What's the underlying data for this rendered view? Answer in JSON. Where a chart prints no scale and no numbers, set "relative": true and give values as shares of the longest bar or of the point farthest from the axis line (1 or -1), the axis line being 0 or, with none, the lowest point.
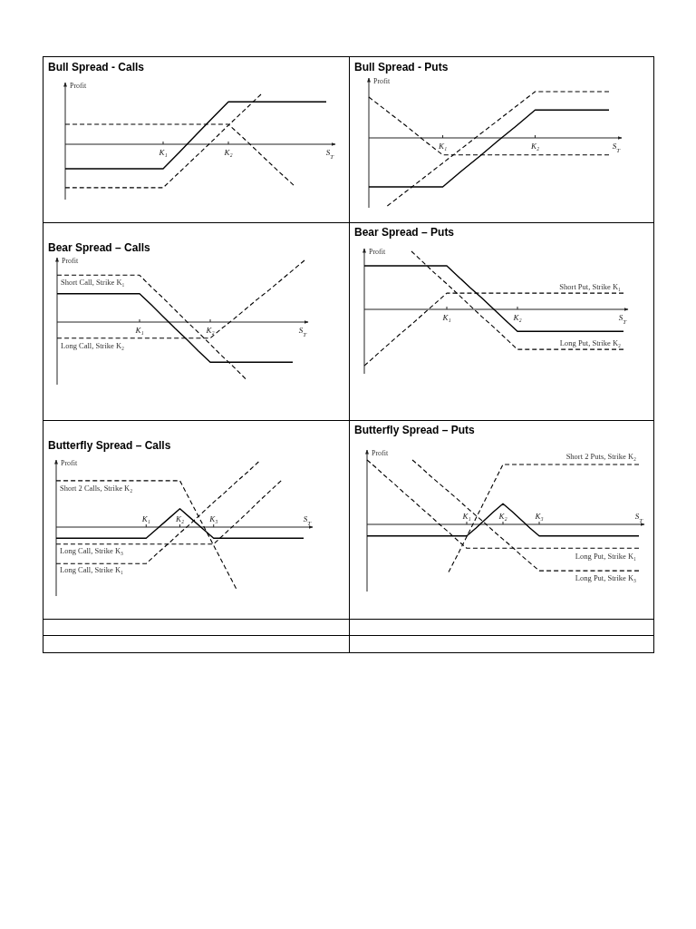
{
  "chart_data": [
    {
      "type": "line",
      "title": "Bull Spread - Calls",
      "xlabel": "S$_{T}$",
      "ylabel": "Profit",
      "relative": true,
      "categories": [
        null,
        null,
        null,
        null,
        null,
        null,
        "K₁",
        null,
        null,
        null,
        "K₂",
        null,
        null,
        null,
        null,
        null,
        null
      ],
      "series": [
        {
          "color": "#000000",
          "line_style": "solid",
          "values": [
            -0.49,
            -0.49,
            -0.49,
            -0.49,
            -0.49,
            -0.49,
            -0.49,
            -0.16,
            0.18,
            0.52,
            0.85,
            0.85,
            0.85,
            0.85,
            0.85,
            0.85,
            0.85
          ]
        },
        {
          "color": "#000000",
          "line_style": "dashed",
          "values": [
            0.4,
            0.4,
            0.4,
            0.4,
            0.4,
            0.4,
            0.4,
            0.4,
            0.4,
            0.4,
            0.4,
            0.1,
            -0.21,
            -0.52,
            -0.82,
            null,
            null
          ]
        },
        {
          "color": "#000000",
          "line_style": "dashed",
          "values": [
            -0.87,
            -0.87,
            -0.87,
            -0.87,
            -0.87,
            -0.87,
            -0.87,
            -0.56,
            -0.25,
            0.06,
            0.38,
            0.69,
            1.0,
            null,
            null,
            null,
            null
          ]
        }
      ]
    },
    {
      "type": "line",
      "title": "Bull Spread - Puts",
      "xlabel": "S$_{T}$",
      "ylabel": "Profit",
      "relative": true,
      "categories": [
        null,
        null,
        null,
        null,
        "K₁",
        null,
        null,
        null,
        null,
        "K₂",
        null,
        null,
        null,
        null
      ],
      "series": [
        {
          "color": "#000000",
          "line_style": "solid",
          "values": [
            -0.72,
            -0.72,
            -0.72,
            -0.72,
            -0.72,
            -0.49,
            -0.27,
            -0.04,
            0.18,
            0.41,
            0.41,
            0.41,
            0.41,
            0.41
          ]
        },
        {
          "color": "#000000",
          "line_style": "dashed",
          "values": [
            0.6,
            0.39,
            0.18,
            -0.04,
            -0.25,
            -0.25,
            -0.25,
            -0.25,
            -0.25,
            -0.25,
            -0.25,
            -0.25,
            -0.25,
            -0.25
          ]
        },
        {
          "color": "#000000",
          "line_style": "dashed",
          "values": [
            null,
            -1.0,
            -0.79,
            -0.58,
            -0.37,
            -0.16,
            0.05,
            0.26,
            0.47,
            0.68,
            0.68,
            0.68,
            0.68,
            0.68
          ]
        }
      ]
    },
    {
      "type": "line",
      "title": "Bear Spread – Calls",
      "xlabel": "S$_{T}$",
      "ylabel": "Profit",
      "relative": true,
      "categories": [
        null,
        null,
        null,
        null,
        null,
        null,
        null,
        "K₁",
        null,
        null,
        null,
        null,
        null,
        "K₂",
        null,
        null,
        null,
        null,
        null,
        null,
        null,
        null
      ],
      "series": [
        {
          "color": "#000000",
          "line_style": "solid",
          "values": [
            0.46,
            0.46,
            0.46,
            0.46,
            0.46,
            0.46,
            0.46,
            0.46,
            0.28,
            0.09,
            -0.1,
            -0.28,
            -0.47,
            -0.65,
            -0.65,
            -0.65,
            -0.65,
            -0.65,
            -0.65,
            -0.65,
            -0.65,
            null
          ]
        },
        {
          "name": "Short Call, Strike K₁",
          "color": "#000000",
          "line_style": "dashed",
          "values": [
            0.76,
            0.76,
            0.76,
            0.76,
            0.76,
            0.76,
            0.76,
            0.76,
            0.57,
            0.39,
            0.2,
            0.01,
            -0.17,
            -0.36,
            -0.55,
            -0.73,
            -0.92,
            null,
            null,
            null,
            null,
            null
          ]
        },
        {
          "name": "Long Call, Strike K₂",
          "color": "#000000",
          "line_style": "dashed",
          "values": [
            -0.26,
            -0.26,
            -0.26,
            -0.26,
            -0.26,
            -0.26,
            -0.26,
            -0.26,
            -0.26,
            -0.26,
            -0.26,
            -0.26,
            -0.26,
            -0.26,
            -0.1,
            0.05,
            0.21,
            0.37,
            0.52,
            0.68,
            0.84,
            1.0
          ]
        }
      ]
    },
    {
      "type": "line",
      "title": "Bear Spread – Puts",
      "xlabel": "S$_{T}$",
      "ylabel": "Profit",
      "relative": true,
      "categories": [
        null,
        null,
        null,
        null,
        null,
        null,
        null,
        "K₁",
        null,
        null,
        null,
        null,
        null,
        "K₂",
        null,
        null,
        null,
        null,
        null,
        null,
        null,
        null,
        null
      ],
      "series": [
        {
          "color": "#000000",
          "line_style": "solid",
          "values": [
            0.75,
            0.75,
            0.75,
            0.75,
            0.75,
            0.75,
            0.75,
            0.75,
            0.56,
            0.37,
            0.19,
            0.0,
            -0.19,
            -0.38,
            -0.38,
            -0.38,
            -0.38,
            -0.38,
            -0.38,
            -0.38,
            -0.38,
            -0.38,
            -0.38
          ]
        },
        {
          "name": "Short Put, Strike K₁",
          "color": "#000000",
          "line_style": "dashed",
          "values": [
            -0.97,
            -0.79,
            -0.61,
            -0.43,
            -0.26,
            -0.08,
            0.1,
            0.28,
            0.28,
            0.28,
            0.28,
            0.28,
            0.28,
            0.28,
            0.28,
            0.28,
            0.28,
            0.28,
            0.28,
            0.28,
            0.28,
            0.28,
            0.28
          ]
        },
        {
          "name": "Long Put, Strike K₂",
          "color": "#000000",
          "line_style": "dashed",
          "values": [
            null,
            null,
            null,
            null,
            1.0,
            0.81,
            0.62,
            0.44,
            0.25,
            0.06,
            -0.13,
            -0.31,
            -0.5,
            -0.69,
            -0.69,
            -0.69,
            -0.69,
            -0.69,
            -0.69,
            -0.69,
            -0.69,
            -0.69,
            -0.69
          ]
        }
      ]
    },
    {
      "type": "line",
      "title": "Butterfly Spread – Calls",
      "xlabel": "S$_{T}$",
      "ylabel": "Profit",
      "relative": true,
      "categories": [
        null,
        null,
        null,
        null,
        null,
        null,
        null,
        null,
        "K₁",
        null,
        null,
        "K₂",
        null,
        null,
        "K₃",
        null,
        null,
        null,
        null,
        null,
        null,
        null,
        null
      ],
      "series": [
        {
          "color": "#000000",
          "line_style": "solid",
          "values": [
            -0.17,
            -0.17,
            -0.17,
            -0.17,
            -0.17,
            -0.17,
            -0.17,
            -0.17,
            -0.17,
            -0.02,
            0.13,
            0.28,
            0.13,
            -0.02,
            -0.17,
            -0.17,
            -0.17,
            -0.17,
            -0.17,
            -0.17,
            -0.17,
            -0.17,
            -0.17
          ]
        },
        {
          "name": "Short 2 Calls, Strike K₂",
          "color": "#000000",
          "line_style": "dashed",
          "values": [
            0.71,
            0.71,
            0.71,
            0.71,
            0.71,
            0.71,
            0.71,
            0.71,
            0.71,
            0.71,
            0.71,
            0.71,
            0.38,
            0.05,
            -0.28,
            -0.61,
            -0.94,
            null,
            null,
            null,
            null,
            null,
            null
          ]
        },
        {
          "name": "Long Call, Strike K₃",
          "color": "#000000",
          "line_style": "dashed",
          "values": [
            -0.26,
            -0.26,
            -0.26,
            -0.26,
            -0.26,
            -0.26,
            -0.26,
            -0.26,
            -0.26,
            -0.26,
            -0.26,
            -0.26,
            -0.26,
            -0.26,
            -0.26,
            -0.1,
            0.06,
            0.22,
            0.39,
            0.55,
            0.71,
            null,
            null
          ]
        },
        {
          "name": "Long Call, Strike K₁",
          "color": "#000000",
          "line_style": "dashed",
          "values": [
            -0.56,
            -0.56,
            -0.56,
            -0.56,
            -0.56,
            -0.56,
            -0.56,
            -0.56,
            -0.56,
            -0.4,
            -0.25,
            -0.09,
            0.06,
            0.22,
            0.38,
            0.53,
            0.69,
            0.84,
            1.0,
            null,
            null,
            null,
            null
          ]
        }
      ]
    },
    {
      "type": "line",
      "title": "Butterfly Spread – Puts",
      "xlabel": "S$_{T}$",
      "ylabel": "Profit",
      "relative": true,
      "categories": [
        null,
        null,
        null,
        null,
        null,
        null,
        null,
        null,
        null,
        null,
        null,
        "K₁",
        null,
        null,
        null,
        "K₂",
        null,
        null,
        null,
        "K₃",
        null,
        null,
        null,
        null,
        null,
        null,
        null,
        null,
        null,
        null,
        null
      ],
      "series": [
        {
          "color": "#000000",
          "line_style": "solid",
          "values": [
            -0.18,
            -0.18,
            -0.18,
            -0.18,
            -0.18,
            -0.18,
            -0.18,
            -0.18,
            -0.18,
            -0.18,
            -0.18,
            -0.18,
            -0.06,
            0.07,
            0.2,
            0.32,
            0.2,
            0.07,
            -0.06,
            -0.18,
            -0.18,
            -0.18,
            -0.18,
            -0.18,
            -0.18,
            -0.18,
            -0.18,
            -0.18,
            -0.18,
            -0.18,
            -0.18
          ]
        },
        {
          "name": "Short 2 Puts, Strike K₂",
          "color": "#000000",
          "line_style": "dashed",
          "values": [
            null,
            null,
            null,
            null,
            null,
            null,
            null,
            null,
            null,
            -0.74,
            -0.47,
            -0.19,
            0.09,
            0.37,
            0.65,
            0.93,
            0.93,
            0.93,
            0.93,
            0.93,
            0.93,
            0.93,
            0.93,
            0.93,
            0.93,
            0.93,
            0.93,
            0.93,
            0.93,
            0.93,
            0.93
          ]
        },
        {
          "name": "Long Put, Strike K₁",
          "color": "#000000",
          "line_style": "dashed",
          "values": [
            1.0,
            0.88,
            0.75,
            0.63,
            0.5,
            0.38,
            0.25,
            0.13,
            0.0,
            -0.12,
            -0.25,
            -0.37,
            -0.37,
            -0.37,
            -0.37,
            -0.37,
            -0.37,
            -0.37,
            -0.37,
            -0.37,
            -0.37,
            -0.37,
            -0.37,
            -0.37,
            -0.37,
            -0.37,
            -0.37,
            -0.37,
            -0.37,
            -0.37,
            -0.37
          ]
        },
        {
          "name": "Long Put, Strike K₃",
          "color": "#000000",
          "line_style": "dashed",
          "values": [
            null,
            null,
            null,
            null,
            null,
            1.0,
            0.88,
            0.75,
            0.63,
            0.51,
            0.39,
            0.26,
            0.14,
            0.02,
            -0.11,
            -0.23,
            -0.35,
            -0.48,
            -0.6,
            -0.72,
            -0.72,
            -0.72,
            -0.72,
            -0.72,
            -0.72,
            -0.72,
            -0.72,
            -0.72,
            -0.72,
            -0.72,
            -0.72
          ]
        }
      ]
    }
  ]
}
